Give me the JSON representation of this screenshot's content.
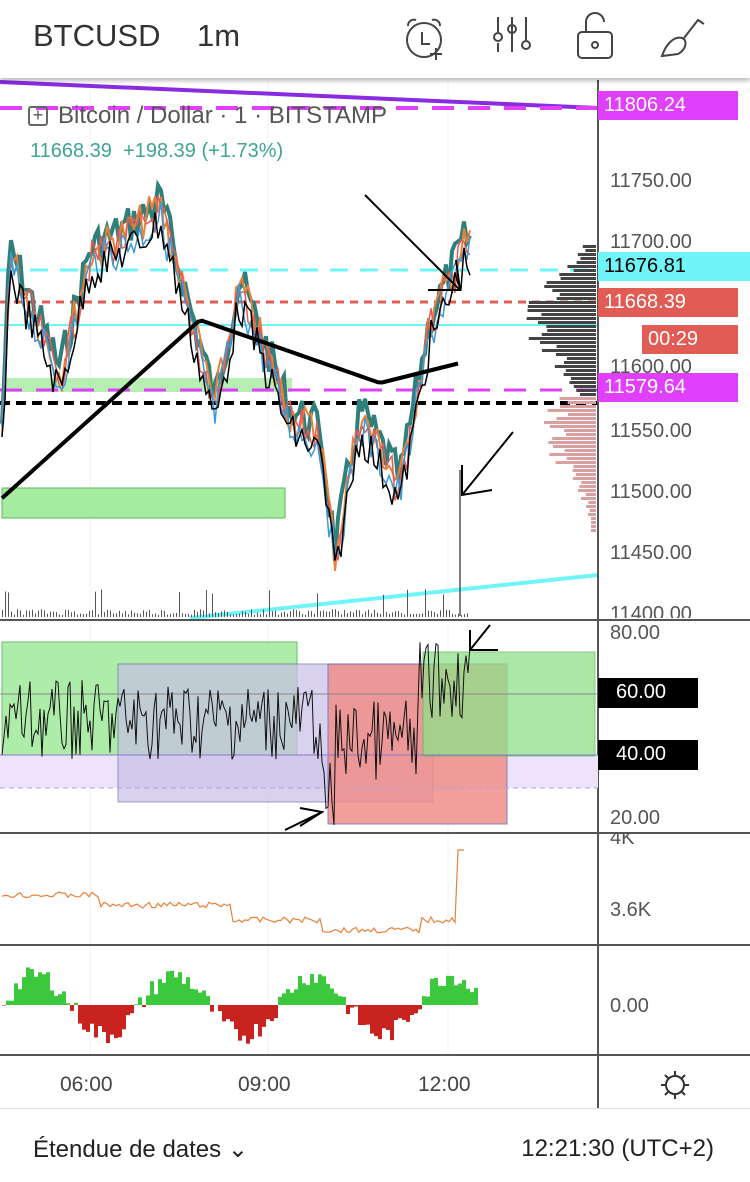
{
  "header": {
    "symbol": "BTCUSD",
    "interval": "1m",
    "icons": [
      "alarm-add-icon",
      "indicators-icon",
      "lock-open-icon",
      "brush-icon"
    ]
  },
  "legend": {
    "title": "Bitcoin / Dollar · 1 · BITSTAMP",
    "last": "11668.39",
    "change": "+198.39 (+1.73%)"
  },
  "price_axis": {
    "ticks": [
      "11750.00",
      "11700.00",
      "11600.00",
      "11550.00",
      "11500.00",
      "11450.00",
      "11400.00"
    ],
    "tags": {
      "magenta_top": "11806.24",
      "cyan": "11676.81",
      "last": "11668.39",
      "countdown": "00:29",
      "magenta_low": "11579.64"
    }
  },
  "rsi_axis": {
    "ticks": [
      "80.00",
      "20.00"
    ],
    "levels": [
      "60.00",
      "40.00"
    ]
  },
  "volume_axis": {
    "ticks": [
      "4K",
      "3.6K"
    ]
  },
  "osc_axis": {
    "ticks": [
      "0.00"
    ]
  },
  "time_axis": {
    "ticks": [
      "06:00",
      "09:00",
      "12:00"
    ]
  },
  "footer": {
    "range_label": "Étendue de dates ⌄",
    "clock": "12:21:30 (UTC+2)"
  },
  "colors": {
    "magenta": "#e040fb",
    "cyan": "#6ff5f8",
    "red": "#e05c54",
    "green": "#3fa592"
  }
}
